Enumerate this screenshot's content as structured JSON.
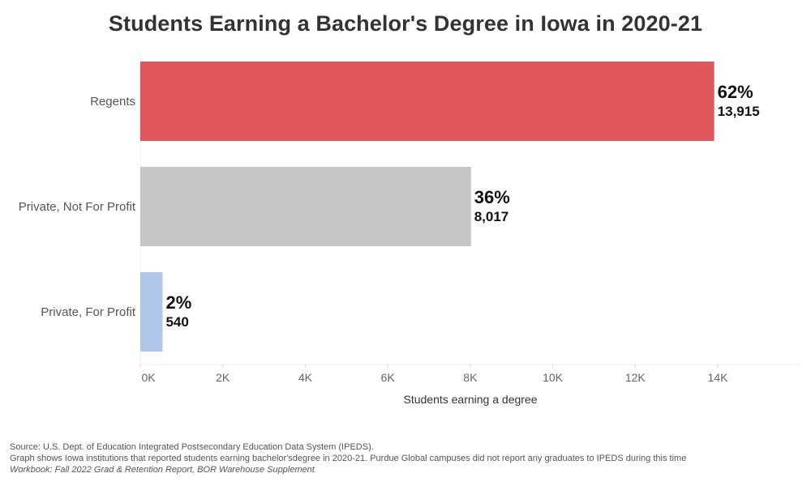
{
  "chart_data": {
    "type": "bar",
    "orientation": "horizontal",
    "title": "Students Earning a Bachelor's Degree in Iowa in 2020-21",
    "xlabel": "Students earning a degree",
    "ylabel": "",
    "xlim": [
      0,
      16000
    ],
    "x_ticks": [
      0,
      2000,
      4000,
      6000,
      8000,
      10000,
      12000,
      14000
    ],
    "x_tick_labels": [
      "0K",
      "2K",
      "4K",
      "6K",
      "8K",
      "10K",
      "12K",
      "14K"
    ],
    "grid": false,
    "categories": [
      "Regents",
      "Private, Not For Profit",
      "Private, For Profit"
    ],
    "values": [
      13915,
      8017,
      540
    ],
    "value_labels": [
      "13,915",
      "8,017",
      "540"
    ],
    "percent_labels": [
      "62%",
      "36%",
      "2%"
    ],
    "colors": [
      "#e0575b",
      "#c6c6c6",
      "#aec7e8"
    ]
  },
  "footnotes": {
    "source": "Source: U.S. Dept. of Education Integrated Postsecondary Education Data System (IPEDS).",
    "note": "Graph shows Iowa institutions that reported students earning bachelor'sdegree in 2020-21.  Purdue Global campuses did not report any graduates to IPEDS during this time",
    "workbook": "Workbook: Fall 2022 Grad & Retention Report, BOR Warehouse Supplement"
  }
}
